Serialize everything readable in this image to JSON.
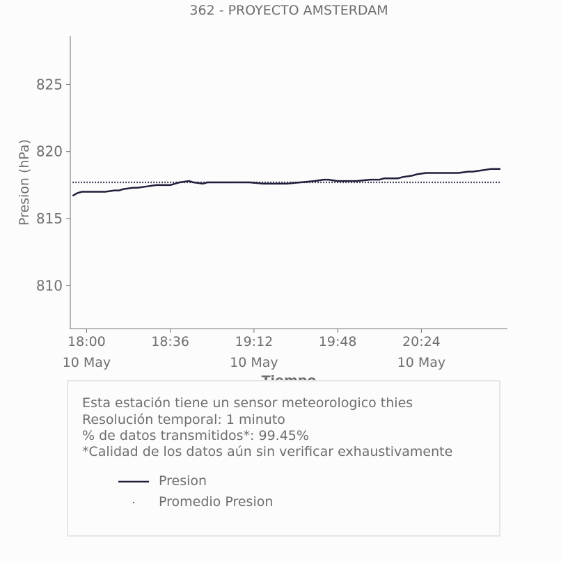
{
  "colors": {
    "series": "#1f1f3d",
    "average": "#1f1f3d",
    "text": "#6e6e6e"
  },
  "chart_data": {
    "type": "line",
    "title": "362 - PROYECTO AMSTERDAM",
    "xlabel": "Tiempo",
    "ylabel": "Presion (hPa)",
    "ylim": [
      806.8,
      828.6
    ],
    "xlim": [
      "17:53",
      "21:01"
    ],
    "x_ticks": [
      {
        "time": "18:00",
        "label": "18:00",
        "date": "10 May"
      },
      {
        "time": "18:36",
        "label": "18:36",
        "date": ""
      },
      {
        "time": "19:12",
        "label": "19:12",
        "date": "10 May"
      },
      {
        "time": "19:48",
        "label": "19:48",
        "date": ""
      },
      {
        "time": "20:24",
        "label": "20:24",
        "date": "10 May"
      }
    ],
    "y_ticks": [
      810,
      815,
      820,
      825
    ],
    "grid": false,
    "legend_position": "bottom",
    "series": [
      {
        "name": "Presion",
        "style": "solid",
        "x": [
          "17:54",
          "17:56",
          "17:58",
          "18:00",
          "18:04",
          "18:08",
          "18:12",
          "18:14",
          "18:16",
          "18:20",
          "18:22",
          "18:26",
          "18:30",
          "18:32",
          "18:36",
          "18:40",
          "18:44",
          "18:46",
          "18:50",
          "18:52",
          "18:56",
          "19:00",
          "19:04",
          "19:10",
          "19:16",
          "19:22",
          "19:26",
          "19:32",
          "19:38",
          "19:42",
          "19:44",
          "19:48",
          "19:52",
          "19:56",
          "20:02",
          "20:06",
          "20:08",
          "20:14",
          "20:16",
          "20:20",
          "20:22",
          "20:26",
          "20:32",
          "20:36",
          "20:40",
          "20:44",
          "20:46",
          "20:50",
          "20:54",
          "20:58"
        ],
        "y": [
          816.7,
          816.9,
          817.0,
          817.0,
          817.0,
          817.0,
          817.1,
          817.1,
          817.2,
          817.3,
          817.3,
          817.4,
          817.5,
          817.5,
          817.5,
          817.7,
          817.8,
          817.7,
          817.6,
          817.7,
          817.7,
          817.7,
          817.7,
          817.7,
          817.6,
          817.6,
          817.6,
          817.7,
          817.8,
          817.9,
          817.9,
          817.8,
          817.8,
          817.8,
          817.9,
          817.9,
          818.0,
          818.0,
          818.1,
          818.2,
          818.3,
          818.4,
          818.4,
          818.4,
          818.4,
          818.5,
          818.5,
          818.6,
          818.7,
          818.7
        ]
      },
      {
        "name": "Promedio Presion",
        "style": "dotted",
        "x": [
          "17:54",
          "20:58"
        ],
        "y": [
          817.7,
          817.7
        ]
      }
    ],
    "legend": [
      "Presion",
      "Promedio Presion"
    ]
  },
  "info": {
    "lines": [
      "Esta estación tiene un sensor meteorologico thies",
      "Resolución temporal: 1 minuto",
      "% de datos transmitidos*: 99.45%",
      "*Calidad de los datos aún sin verificar exhaustivamente"
    ],
    "legend": {
      "series": "Presion",
      "average": "Promedio Presion"
    }
  }
}
